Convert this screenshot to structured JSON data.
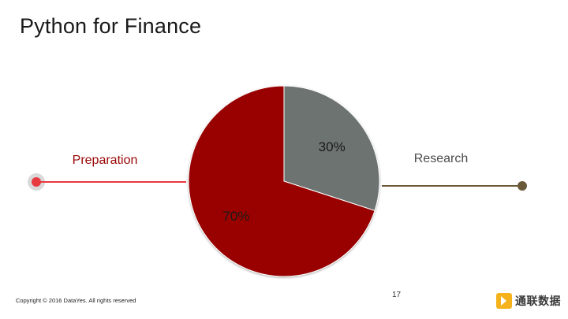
{
  "slide": {
    "title": "Python for Finance",
    "page_number": "17",
    "copyright": "Copyright © 2016 DataYes. All rights reserved",
    "logo_text": "通联数据"
  },
  "colors": {
    "preparation": "#990505",
    "research": "#6d7370",
    "preparation_callout": "#e8393f",
    "research_callout": "#6b5a3a",
    "logo_accent": "#f5b21a"
  },
  "chart_data": {
    "type": "pie",
    "title": "",
    "start_angle": "12 o'clock",
    "direction": "clockwise",
    "slices": [
      {
        "label": "Research",
        "value": 30,
        "data_label": "30%",
        "color": "#6d7370"
      },
      {
        "label": "Preparation",
        "value": 70,
        "data_label": "70%",
        "color": "#990505"
      }
    ],
    "callouts": [
      {
        "text": "Preparation",
        "slice": "Preparation",
        "side": "left"
      },
      {
        "text": "Research",
        "slice": "Research",
        "side": "right"
      }
    ]
  }
}
